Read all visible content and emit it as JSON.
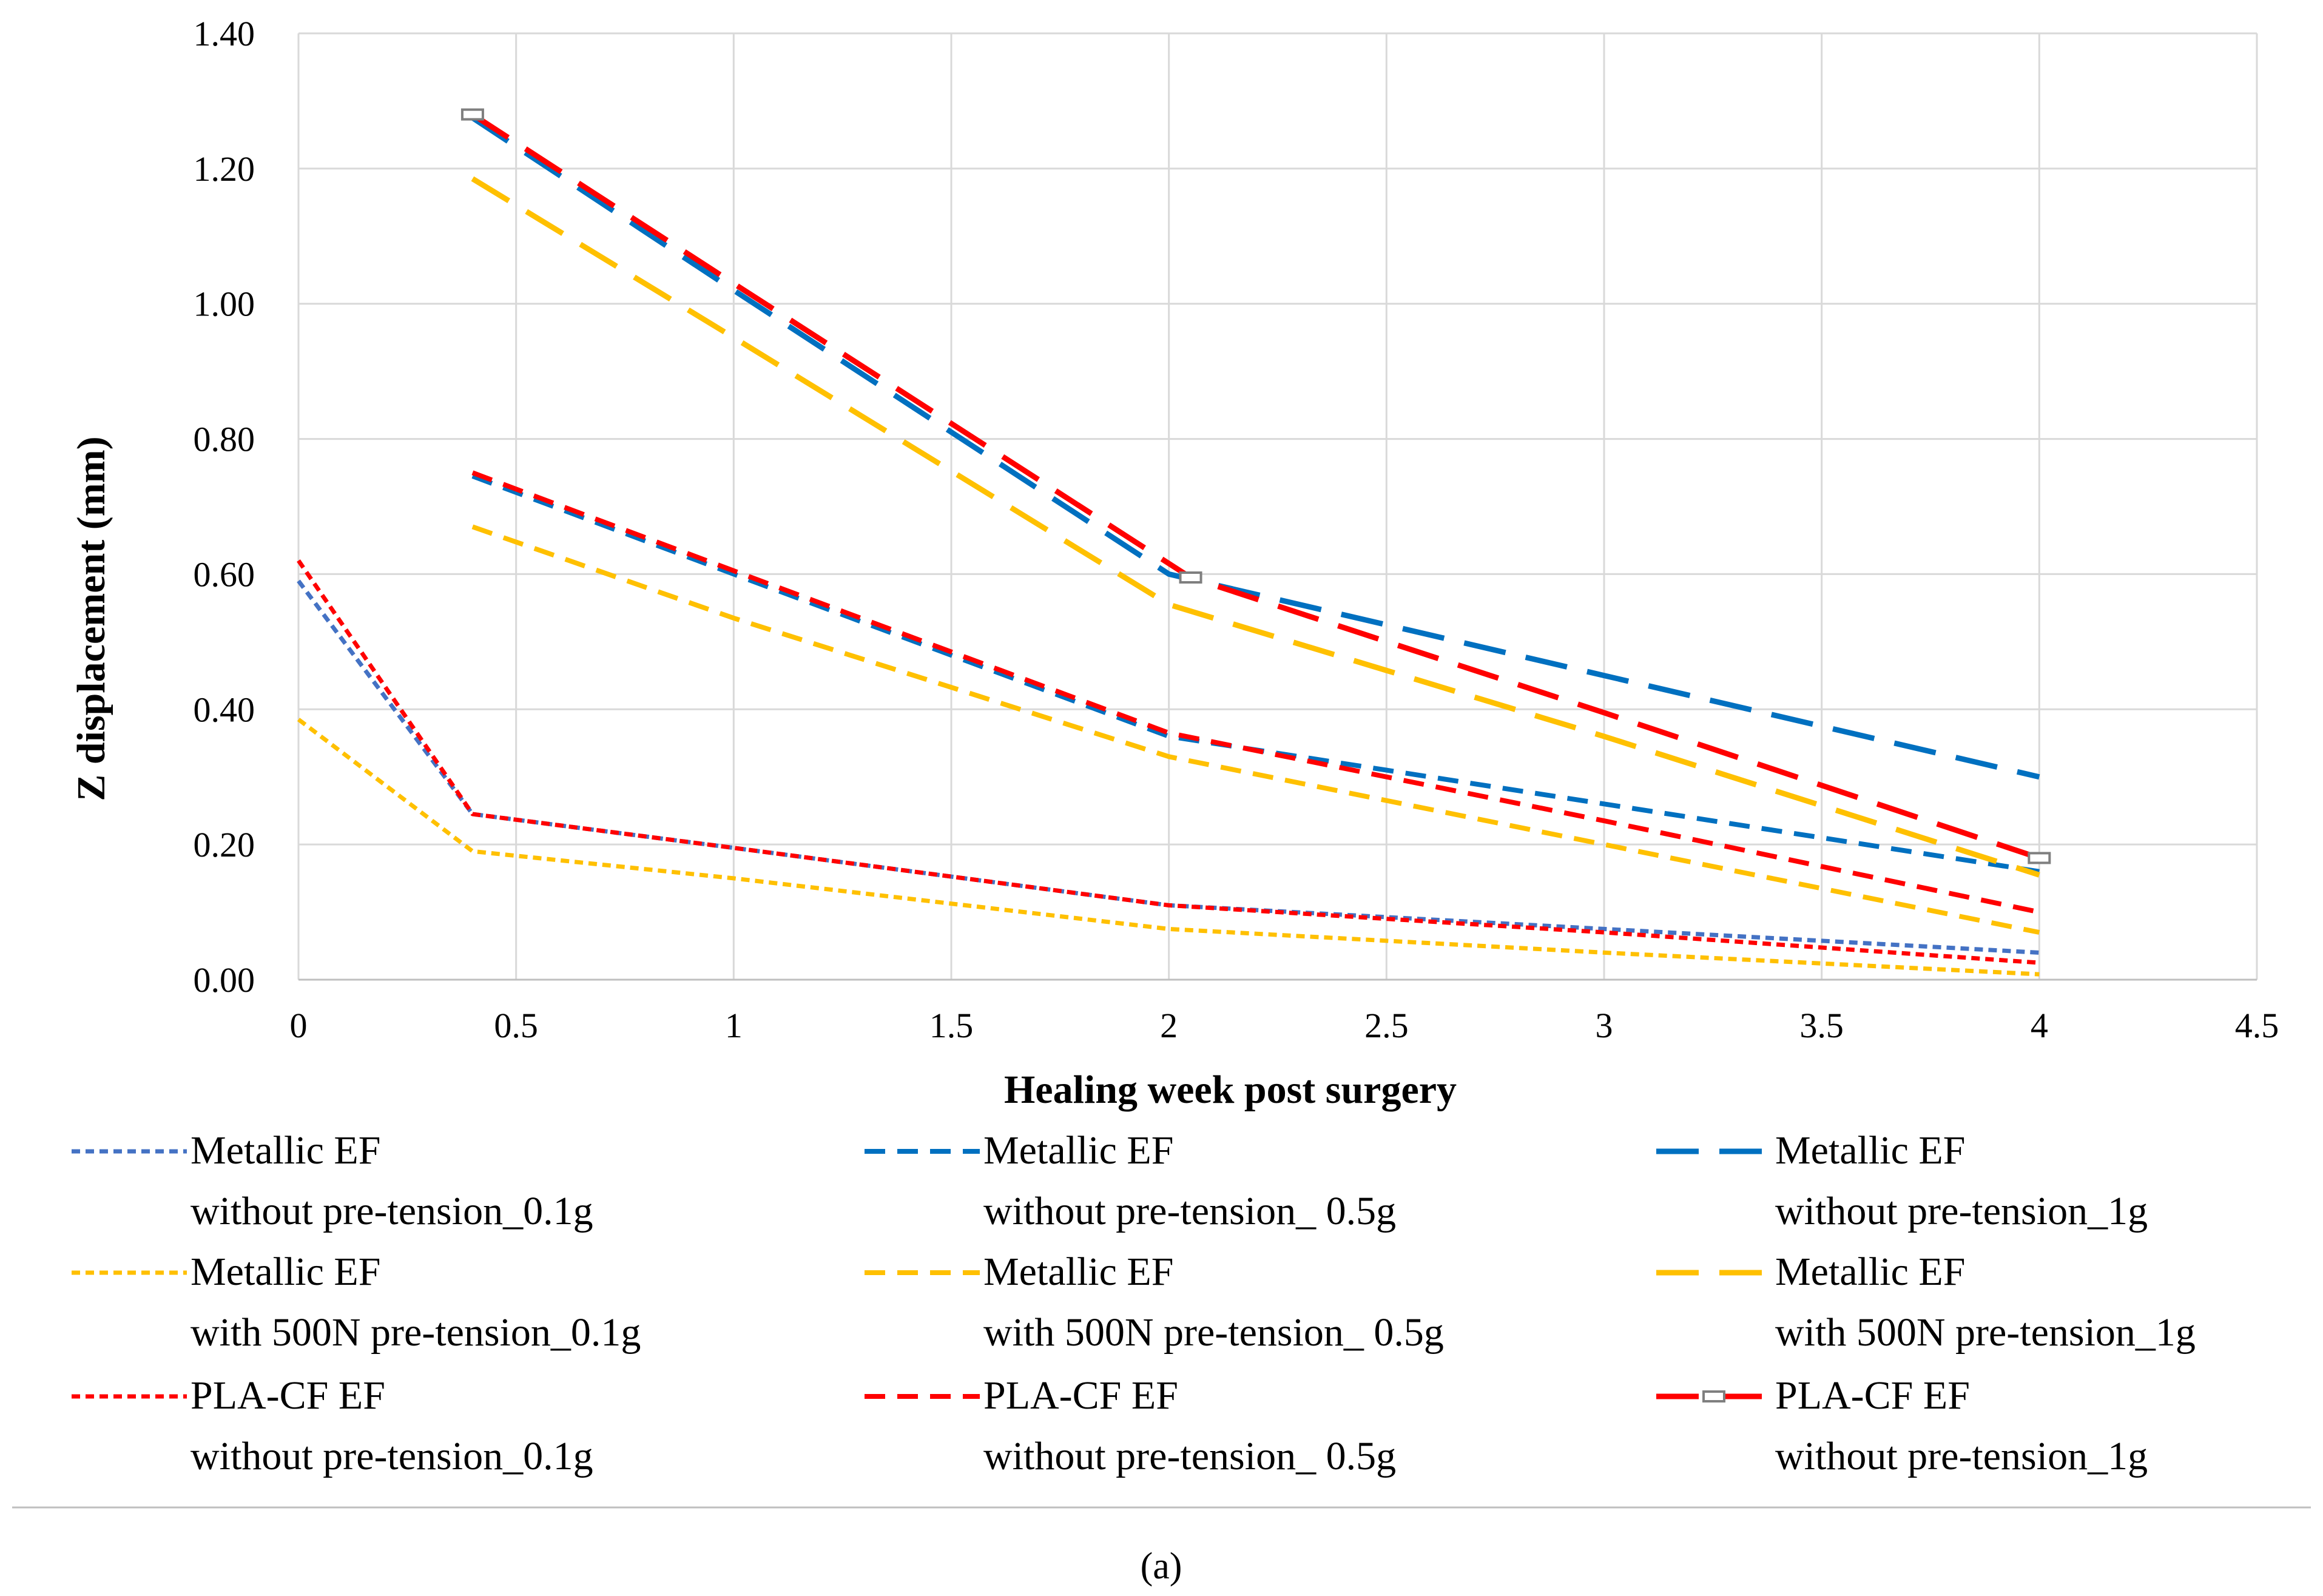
{
  "chart_data": {
    "type": "line",
    "title": "",
    "xlabel": "Healing week post surgery",
    "ylabel": "Z displacement (mm)",
    "xlim": [
      0,
      4.5
    ],
    "ylim": [
      0,
      1.4
    ],
    "x_ticks": [
      "0",
      "0.5",
      "1",
      "1.5",
      "2",
      "2.5",
      "3",
      "3.5",
      "4",
      "4.5"
    ],
    "y_ticks": [
      "0.00",
      "0.20",
      "0.40",
      "0.60",
      "0.80",
      "1.00",
      "1.20",
      "1.40"
    ],
    "grid": true,
    "legend_position": "bottom",
    "caption": "(a)",
    "series": [
      {
        "name_line1": "Metallic EF",
        "name_line2": "without pre-tension_0.1g",
        "color": "#4472C4",
        "dash": "short",
        "x": [
          0,
          0.4,
          1,
          2,
          3,
          4
        ],
        "y": [
          0.59,
          0.245,
          0.195,
          0.11,
          0.075,
          0.04
        ]
      },
      {
        "name_line1": "Metallic EF",
        "name_line2": "without pre-tension_ 0.5g",
        "color": "#0070C0",
        "dash": "medium",
        "x": [
          0.4,
          1,
          2,
          3,
          4
        ],
        "y": [
          0.745,
          0.6,
          0.36,
          0.26,
          0.16
        ]
      },
      {
        "name_line1": "Metallic EF",
        "name_line2": "without pre-tension_1g",
        "color": "#0070C0",
        "dash": "long",
        "x": [
          0.4,
          1,
          2,
          3,
          4
        ],
        "y": [
          1.275,
          1.02,
          0.6,
          0.45,
          0.3
        ]
      },
      {
        "name_line1": "Metallic EF",
        "name_line2": "with 500N pre-tension_0.1g",
        "color": "#FFC000",
        "dash": "short",
        "x": [
          0,
          0.4,
          1,
          2,
          3,
          4
        ],
        "y": [
          0.385,
          0.19,
          0.15,
          0.075,
          0.04,
          0.008
        ]
      },
      {
        "name_line1": "Metallic EF",
        "name_line2": "with 500N pre-tension_ 0.5g",
        "color": "#FFC000",
        "dash": "medium",
        "x": [
          0.4,
          1,
          2,
          3,
          4
        ],
        "y": [
          0.67,
          0.535,
          0.33,
          0.2,
          0.07
        ]
      },
      {
        "name_line1": "Metallic EF",
        "name_line2": "with 500N pre-tension_1g",
        "color": "#FFC000",
        "dash": "long",
        "x": [
          0.4,
          1,
          2,
          3,
          4
        ],
        "y": [
          1.185,
          0.95,
          0.555,
          0.36,
          0.155
        ]
      },
      {
        "name_line1": "PLA-CF EF",
        "name_line2": "without pre-tension_0.1g",
        "color": "#FF0000",
        "dash": "short",
        "x": [
          0,
          0.4,
          1,
          2,
          3,
          4
        ],
        "y": [
          0.62,
          0.245,
          0.195,
          0.11,
          0.07,
          0.025
        ]
      },
      {
        "name_line1": "PLA-CF EF",
        "name_line2": "without pre-tension_ 0.5g",
        "color": "#FF0000",
        "dash": "medium",
        "x": [
          0.4,
          1,
          2,
          3,
          4
        ],
        "y": [
          0.75,
          0.605,
          0.365,
          0.235,
          0.1
        ]
      },
      {
        "name_line1": "PLA-CF EF",
        "name_line2": "without pre-tension_1g",
        "color": "#FF0000",
        "dash": "long-marker",
        "x": [
          0.4,
          1,
          2.05,
          3,
          4
        ],
        "y": [
          1.28,
          1.03,
          0.595,
          0.395,
          0.18
        ]
      }
    ]
  }
}
